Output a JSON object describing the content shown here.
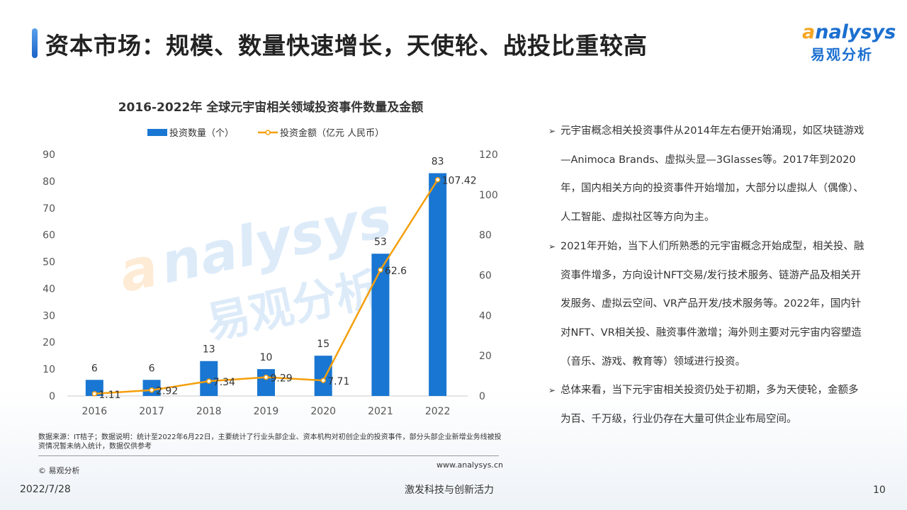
{
  "header": {
    "title": "资本市场：规模、数量快速增长，天使轮、战投比重较高",
    "logo_en": "analysys",
    "logo_cn": "易观分析"
  },
  "colors": {
    "bar": "#1976d2",
    "line": "#f59e0b",
    "accent": "#1a63c8"
  },
  "chart_data": {
    "type": "bar+line",
    "title": "2016-2022年 全球元宇宙相关领域投资事件数量及金额",
    "categories": [
      "2016",
      "2017",
      "2018",
      "2019",
      "2020",
      "2021",
      "2022"
    ],
    "series": [
      {
        "name": "投资数量（个）",
        "type": "bar",
        "axis": "left",
        "values": [
          6,
          6,
          13,
          10,
          15,
          53,
          83
        ]
      },
      {
        "name": "投资金额（亿元 人民币）",
        "type": "line",
        "axis": "right",
        "values": [
          1.11,
          2.92,
          7.34,
          9.29,
          7.71,
          62.6,
          107.42
        ]
      }
    ],
    "left_axis": {
      "ylim": [
        0,
        90
      ],
      "ticks": [
        0,
        10,
        20,
        30,
        40,
        50,
        60,
        70,
        80,
        90
      ]
    },
    "right_axis": {
      "ylim": [
        0,
        120
      ],
      "ticks": [
        0,
        20,
        40,
        60,
        80,
        100,
        120
      ]
    },
    "legend": "top",
    "grid": false,
    "watermark": "analysys 易观分析"
  },
  "bullets": [
    "元宇宙概念相关投资事件从2014年左右便开始涌现，如区块链游戏—Animoca Brands、虚拟头显—3Glasses等。2017年到2020年，国内相关方向的投资事件开始增加，大部分以虚拟人（偶像）、人工智能、虚拟社区等方向为主。",
    "2021年开始，当下人们所熟悉的元宇宙概念开始成型，相关投、融资事件增多，方向设计NFT交易/发行技术服务、链游产品及相关开发服务、虚拟云空间、VR产品开发/技术服务等。2022年，国内针对NFT、VR相关投、融资事件激增；海外则主要对元宇宙内容塑造（音乐、游戏、教育等）领域进行投资。",
    "总体来看，当下元宇宙相关投资仍处于初期，多为天使轮，金额多为百、千万级，行业仍存在大量可供企业布局空间。"
  ],
  "footer": {
    "source": "数据来源：IT桔子；数据说明：统计至2022年6月22日，主要统计了行业头部企业、资本机构对初创企业的投资事件，部分头部企业新增业务线被投资情况暂未纳入统计，数据仅供参考",
    "copyright": "© 易观分析",
    "website": "www.analysys.cn",
    "date": "2022/7/28",
    "slogan": "激发科技与创新活力",
    "page": "10"
  }
}
